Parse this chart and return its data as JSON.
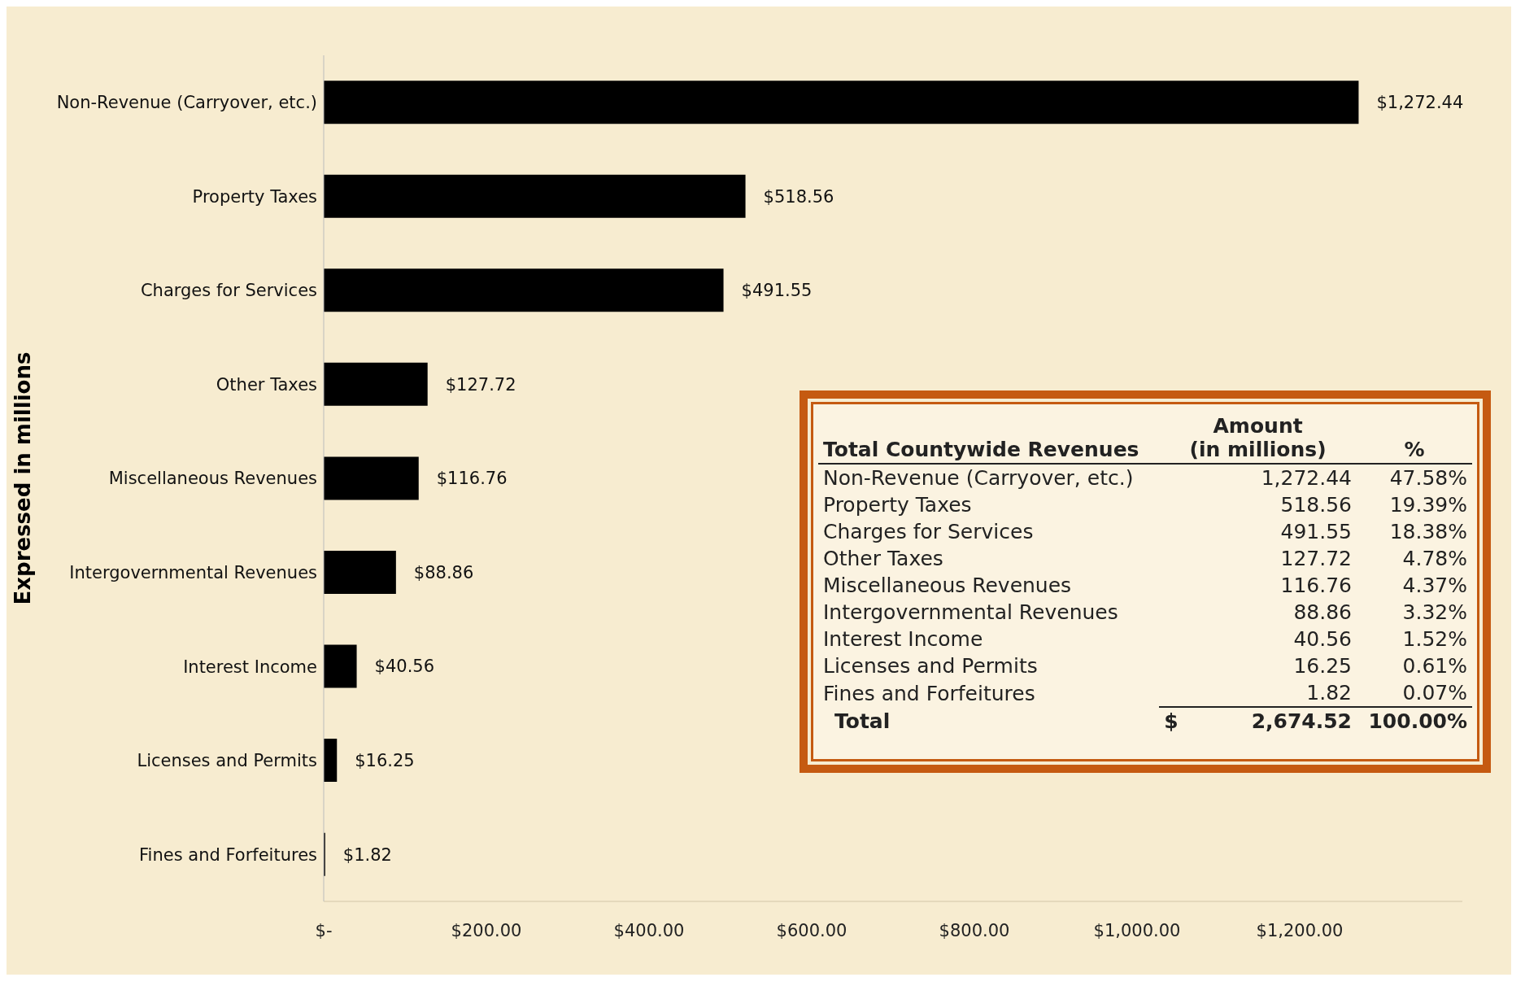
{
  "chart_data": [
    {
      "type": "bar",
      "orientation": "horizontal",
      "ylabel": "Expressed in millions",
      "categories": [
        "Non-Revenue (Carryover, etc.)",
        "Property Taxes",
        "Charges for Services",
        "Other Taxes",
        "Miscellaneous Revenues",
        "Intergovernmental Revenues",
        "Interest Income",
        "Licenses and Permits",
        "Fines and Forfeitures"
      ],
      "values": [
        1272.44,
        518.56,
        491.55,
        127.72,
        116.76,
        88.86,
        40.56,
        16.25,
        1.82
      ],
      "value_labels": [
        "$1,272.44",
        "$518.56",
        "$491.55",
        "$127.72",
        "$116.76",
        "$88.86",
        "$40.56",
        "$16.25",
        "$1.82"
      ],
      "color": "#000000",
      "xlim": [
        0,
        1400
      ],
      "xticks": [
        {
          "value": 0,
          "label": "$-"
        },
        {
          "value": 200,
          "label": "$200.00"
        },
        {
          "value": 400,
          "label": "$400.00"
        },
        {
          "value": 600,
          "label": "$600.00"
        },
        {
          "value": 800,
          "label": "$800.00"
        },
        {
          "value": 1000,
          "label": "$1,000.00"
        },
        {
          "value": 1200,
          "label": "$1,200.00"
        }
      ],
      "grid": false
    },
    {
      "type": "other",
      "title": "Total Countywide Revenues",
      "annotations": [
        "Amount (in millions)",
        "%",
        "Non-Revenue (Carryover, etc.)",
        "1,272.44",
        "47.58%",
        "Property Taxes",
        "518.56",
        "19.39%",
        "Charges for Services",
        "491.55",
        "18.38%",
        "Other Taxes",
        "127.72",
        "4.78%",
        "Miscellaneous Revenues",
        "116.76",
        "4.37%",
        "Intergovernmental Revenues",
        "88.86",
        "3.32%",
        "Interest Income",
        "40.56",
        "1.52%",
        "Licenses and Permits",
        "16.25",
        "0.61%",
        "Fines and Forfeitures",
        "1.82",
        "0.07%",
        "Total",
        "$",
        "2,674.52",
        "100.00%"
      ]
    }
  ]
}
